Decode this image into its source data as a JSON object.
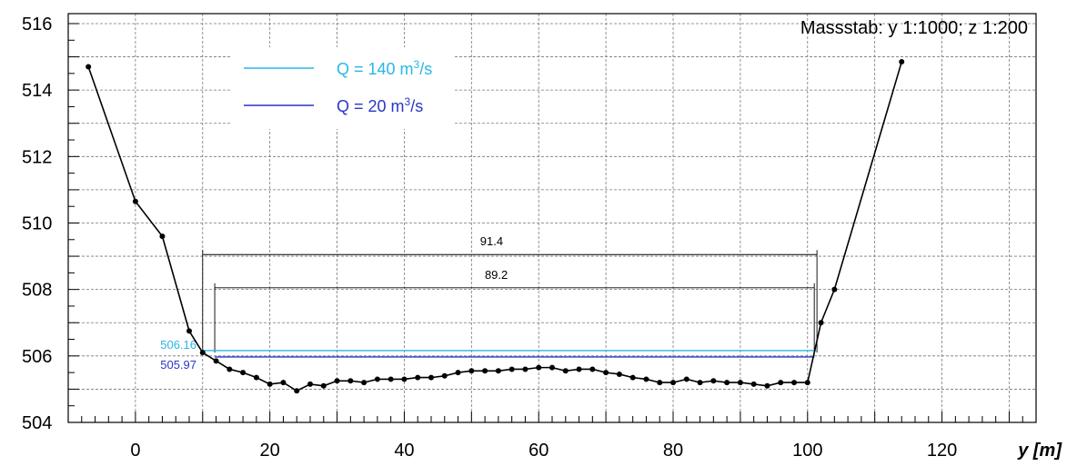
{
  "chart_data": {
    "type": "line",
    "xlabel": "y [m]",
    "ylabel": "",
    "xlim": [
      -10,
      134
    ],
    "ylim": [
      504,
      516.3
    ],
    "x_ticks": [
      0,
      20,
      40,
      60,
      80,
      100,
      120
    ],
    "y_ticks": [
      504,
      506,
      508,
      510,
      512,
      514,
      516
    ],
    "grid": true,
    "scale_note": "Massstab: y 1:1000; z 1:200",
    "series": [
      {
        "name": "",
        "color": "#000000",
        "points": [
          [
            -7,
            514.7
          ],
          [
            0,
            510.65
          ],
          [
            4,
            509.6
          ],
          [
            8,
            506.75
          ],
          [
            10,
            506.1
          ],
          [
            12,
            505.85
          ],
          [
            14,
            505.6
          ],
          [
            16,
            505.5
          ],
          [
            18,
            505.35
          ],
          [
            20,
            505.15
          ],
          [
            22,
            505.2
          ],
          [
            24,
            504.95
          ],
          [
            26,
            505.15
          ],
          [
            28,
            505.1
          ],
          [
            30,
            505.25
          ],
          [
            32,
            505.25
          ],
          [
            34,
            505.2
          ],
          [
            36,
            505.3
          ],
          [
            38,
            505.3
          ],
          [
            40,
            505.3
          ],
          [
            42,
            505.35
          ],
          [
            44,
            505.35
          ],
          [
            46,
            505.4
          ],
          [
            48,
            505.5
          ],
          [
            50,
            505.55
          ],
          [
            52,
            505.55
          ],
          [
            54,
            505.55
          ],
          [
            56,
            505.6
          ],
          [
            58,
            505.6
          ],
          [
            60,
            505.65
          ],
          [
            62,
            505.65
          ],
          [
            64,
            505.55
          ],
          [
            66,
            505.6
          ],
          [
            68,
            505.6
          ],
          [
            70,
            505.5
          ],
          [
            72,
            505.45
          ],
          [
            74,
            505.35
          ],
          [
            76,
            505.3
          ],
          [
            78,
            505.2
          ],
          [
            80,
            505.2
          ],
          [
            82,
            505.3
          ],
          [
            84,
            505.2
          ],
          [
            86,
            505.25
          ],
          [
            88,
            505.2
          ],
          [
            90,
            505.2
          ],
          [
            92,
            505.15
          ],
          [
            94,
            505.1
          ],
          [
            96,
            505.2
          ],
          [
            98,
            505.2
          ],
          [
            100,
            505.2
          ],
          [
            102,
            507.0
          ],
          [
            104,
            508.0
          ],
          [
            114,
            514.85
          ]
        ]
      }
    ],
    "water_levels": [
      {
        "name": "Q = 140 m³/s",
        "label_q": "Q = 140 m",
        "label_exp": "3",
        "label_unit": "/s",
        "value": 506.16,
        "value_label": "506.16",
        "color": "#29b6e6",
        "x_start": 10,
        "x_end": 101.4
      },
      {
        "name": "Q = 20 m³/s",
        "label_q": "Q = 20 m",
        "label_exp": "3",
        "label_unit": "/s",
        "value": 505.97,
        "value_label": "505.97",
        "color": "#2a35c8",
        "x_start": 11.8,
        "x_end": 101
      }
    ],
    "width_markers": [
      {
        "label": "91.4",
        "x_start": 10,
        "x_end": 101.4,
        "y": 509.05
      },
      {
        "label": "89.2",
        "x_start": 11.8,
        "x_end": 101,
        "y": 508.05
      }
    ]
  }
}
